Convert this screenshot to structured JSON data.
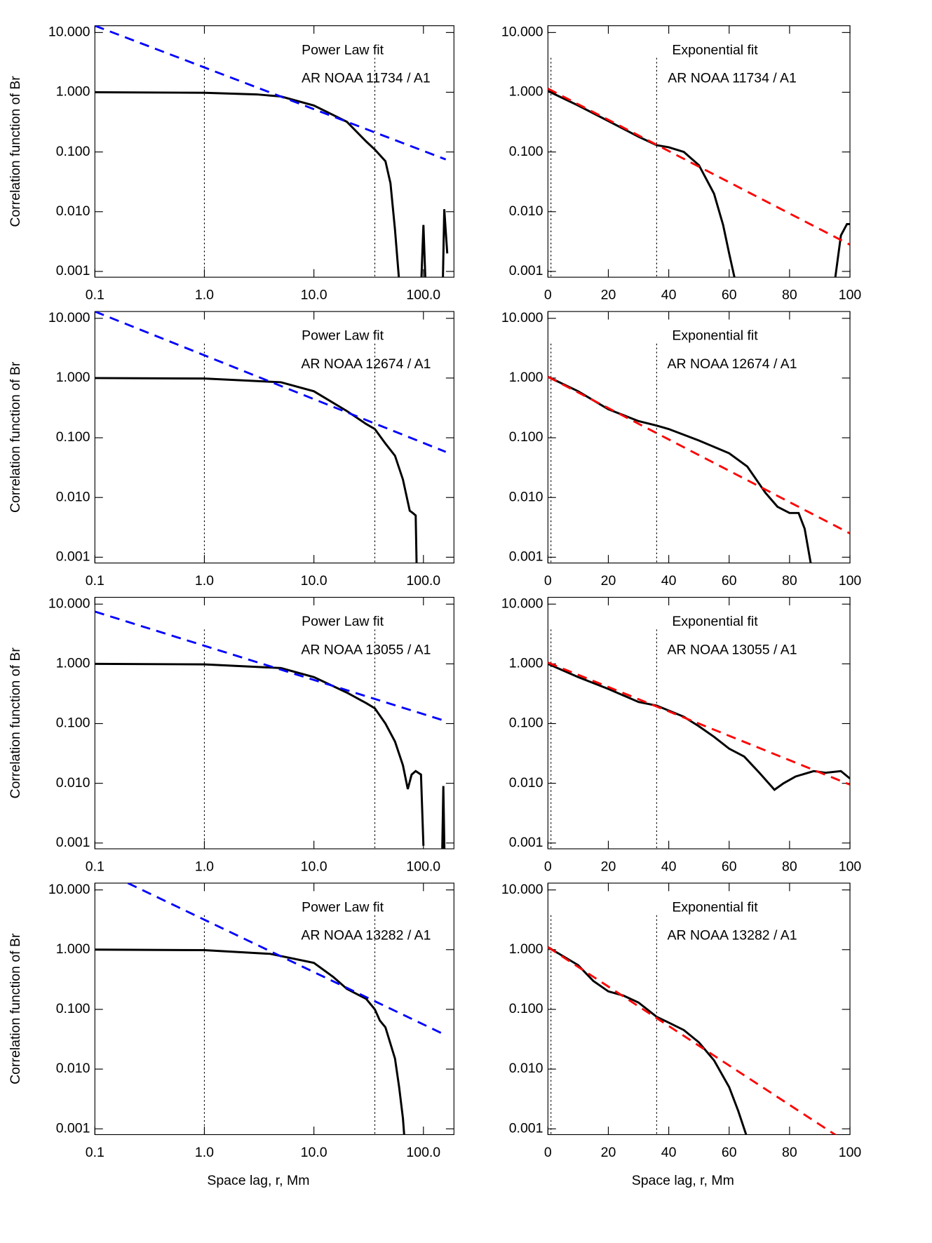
{
  "chart_data": [
    {
      "type": "line",
      "xscale": "log",
      "yscale": "log",
      "xlim": [
        0.1,
        190
      ],
      "ylim": [
        0.0008,
        13
      ],
      "xticks": [
        0.1,
        {
          "value": 1,
          "label": "1.0"
        },
        {
          "value": 10,
          "label": "10.0"
        },
        {
          "value": 100,
          "label": "100.0"
        }
      ],
      "yticks": [
        {
          "value": 10,
          "label": "10.000"
        },
        {
          "value": 1,
          "label": "1.000"
        },
        {
          "value": 0.1,
          "label": "0.100"
        },
        {
          "value": 0.01,
          "label": "0.010"
        },
        {
          "value": 0.001,
          "label": "0.001"
        }
      ],
      "ylabel": "Correlation function of Br",
      "annotations": [
        "Power Law fit",
        "AR NOAA 11734 / A1"
      ],
      "vlines": [
        1,
        36
      ],
      "series": [
        {
          "color": "#000000",
          "x": [
            0.1,
            1,
            3,
            5,
            10,
            20,
            30,
            36,
            45,
            50,
            55,
            60,
            null,
            95,
            100,
            105,
            null,
            150,
            155,
            165
          ],
          "values": [
            1.0,
            0.98,
            0.92,
            0.85,
            0.6,
            0.32,
            0.15,
            0.11,
            0.07,
            0.03,
            0.005,
            0.0007,
            null,
            0.0005,
            0.006,
            0.0005,
            null,
            0.0005,
            0.011,
            0.002
          ]
        },
        {
          "color": "#0000ff",
          "dash": true,
          "x": [
            0.1,
            160
          ],
          "values": [
            13,
            0.075
          ]
        }
      ]
    },
    {
      "type": "line",
      "xscale": "linear",
      "yscale": "log",
      "xlim": [
        0,
        100
      ],
      "ylim": [
        0.0008,
        13
      ],
      "xticks": [
        0,
        20,
        40,
        60,
        80,
        100
      ],
      "yticks": [
        {
          "value": 10,
          "label": "10.000"
        },
        {
          "value": 1,
          "label": "1.000"
        },
        {
          "value": 0.1,
          "label": "0.100"
        },
        {
          "value": 0.01,
          "label": "0.010"
        },
        {
          "value": 0.001,
          "label": "0.001"
        }
      ],
      "annotations": [
        "Exponential fit",
        "AR NOAA 11734 / A1"
      ],
      "vlines": [
        1,
        36
      ],
      "series": [
        {
          "color": "#000000",
          "x": [
            0,
            10,
            20,
            30,
            36,
            40,
            45,
            50,
            55,
            58,
            60,
            62,
            null,
            95,
            97,
            99,
            100
          ],
          "values": [
            1.05,
            0.6,
            0.33,
            0.18,
            0.13,
            0.12,
            0.1,
            0.06,
            0.02,
            0.006,
            0.002,
            0.0007,
            null,
            0.0007,
            0.004,
            0.0062,
            0.0062
          ]
        },
        {
          "color": "#ff0000",
          "dash": true,
          "x": [
            0,
            100
          ],
          "values": [
            1.15,
            0.0028
          ]
        }
      ]
    },
    {
      "type": "line",
      "xscale": "log",
      "yscale": "log",
      "xlim": [
        0.1,
        190
      ],
      "ylim": [
        0.0008,
        13
      ],
      "xticks": [
        0.1,
        {
          "value": 1,
          "label": "1.0"
        },
        {
          "value": 10,
          "label": "10.0"
        },
        {
          "value": 100,
          "label": "100.0"
        }
      ],
      "yticks": [
        {
          "value": 10,
          "label": "10.000"
        },
        {
          "value": 1,
          "label": "1.000"
        },
        {
          "value": 0.1,
          "label": "0.100"
        },
        {
          "value": 0.01,
          "label": "0.010"
        },
        {
          "value": 0.001,
          "label": "0.001"
        }
      ],
      "ylabel": "Correlation function of Br",
      "annotations": [
        "Power Law fit",
        "AR NOAA 12674 / A1"
      ],
      "vlines": [
        1,
        36
      ],
      "series": [
        {
          "color": "#000000",
          "x": [
            0.1,
            1,
            5,
            10,
            20,
            30,
            36,
            45,
            55,
            65,
            75,
            80,
            85,
            87
          ],
          "values": [
            1.0,
            0.98,
            0.85,
            0.6,
            0.28,
            0.17,
            0.14,
            0.08,
            0.05,
            0.02,
            0.006,
            0.0055,
            0.005,
            0.0005
          ]
        },
        {
          "color": "#0000ff",
          "dash": true,
          "x": [
            0.1,
            160
          ],
          "values": [
            13,
            0.058
          ]
        }
      ]
    },
    {
      "type": "line",
      "xscale": "linear",
      "yscale": "log",
      "xlim": [
        0,
        100
      ],
      "ylim": [
        0.0008,
        13
      ],
      "xticks": [
        0,
        20,
        40,
        60,
        80,
        100
      ],
      "yticks": [
        {
          "value": 10,
          "label": "10.000"
        },
        {
          "value": 1,
          "label": "1.000"
        },
        {
          "value": 0.1,
          "label": "0.100"
        },
        {
          "value": 0.01,
          "label": "0.010"
        },
        {
          "value": 0.001,
          "label": "0.001"
        }
      ],
      "annotations": [
        "Exponential fit",
        "AR NOAA 12674 / A1"
      ],
      "vlines": [
        1,
        36
      ],
      "series": [
        {
          "color": "#000000",
          "x": [
            0,
            10,
            20,
            30,
            36,
            40,
            50,
            60,
            66,
            72,
            76,
            80,
            83,
            85,
            87
          ],
          "values": [
            1.05,
            0.6,
            0.3,
            0.19,
            0.16,
            0.14,
            0.09,
            0.055,
            0.033,
            0.012,
            0.007,
            0.0055,
            0.0055,
            0.003,
            0.0008
          ]
        },
        {
          "color": "#ff0000",
          "dash": true,
          "x": [
            0,
            100
          ],
          "values": [
            1.05,
            0.0025
          ]
        }
      ]
    },
    {
      "type": "line",
      "xscale": "log",
      "yscale": "log",
      "xlim": [
        0.1,
        190
      ],
      "ylim": [
        0.0008,
        13
      ],
      "xticks": [
        0.1,
        {
          "value": 1,
          "label": "1.0"
        },
        {
          "value": 10,
          "label": "10.0"
        },
        {
          "value": 100,
          "label": "100.0"
        }
      ],
      "yticks": [
        {
          "value": 10,
          "label": "10.000"
        },
        {
          "value": 1,
          "label": "1.000"
        },
        {
          "value": 0.1,
          "label": "0.100"
        },
        {
          "value": 0.01,
          "label": "0.010"
        },
        {
          "value": 0.001,
          "label": "0.001"
        }
      ],
      "ylabel": "Correlation function of Br",
      "annotations": [
        "Power Law fit",
        "AR NOAA 13055 / A1"
      ],
      "vlines": [
        1,
        36
      ],
      "series": [
        {
          "color": "#000000",
          "x": [
            0.1,
            1,
            5,
            10,
            20,
            30,
            36,
            45,
            55,
            65,
            72,
            78,
            85,
            95,
            100,
            null,
            148,
            152,
            156
          ],
          "values": [
            1.0,
            0.98,
            0.85,
            0.6,
            0.33,
            0.22,
            0.18,
            0.1,
            0.05,
            0.02,
            0.008,
            0.014,
            0.016,
            0.014,
            0.0009,
            null,
            0.0005,
            0.009,
            0.0005
          ]
        },
        {
          "color": "#0000ff",
          "dash": true,
          "x": [
            0.1,
            160
          ],
          "values": [
            7.5,
            0.11
          ]
        }
      ]
    },
    {
      "type": "line",
      "xscale": "linear",
      "yscale": "log",
      "xlim": [
        0,
        100
      ],
      "ylim": [
        0.0008,
        13
      ],
      "xticks": [
        0,
        20,
        40,
        60,
        80,
        100
      ],
      "yticks": [
        {
          "value": 10,
          "label": "10.000"
        },
        {
          "value": 1,
          "label": "1.000"
        },
        {
          "value": 0.1,
          "label": "0.100"
        },
        {
          "value": 0.01,
          "label": "0.010"
        },
        {
          "value": 0.001,
          "label": "0.001"
        }
      ],
      "annotations": [
        "Exponential fit",
        "AR NOAA 13055 / A1"
      ],
      "vlines": [
        1,
        36
      ],
      "series": [
        {
          "color": "#000000",
          "x": [
            0,
            10,
            20,
            30,
            36,
            45,
            50,
            55,
            60,
            65,
            70,
            75,
            78,
            82,
            88,
            92,
            97,
            100
          ],
          "values": [
            1.0,
            0.6,
            0.38,
            0.23,
            0.2,
            0.13,
            0.09,
            0.06,
            0.038,
            0.028,
            0.015,
            0.0078,
            0.01,
            0.013,
            0.016,
            0.015,
            0.016,
            0.012
          ]
        },
        {
          "color": "#ff0000",
          "dash": true,
          "x": [
            0,
            100
          ],
          "values": [
            1.05,
            0.0095
          ]
        }
      ]
    },
    {
      "type": "line",
      "xscale": "log",
      "yscale": "log",
      "xlim": [
        0.1,
        190
      ],
      "ylim": [
        0.0008,
        13
      ],
      "xticks": [
        0.1,
        {
          "value": 1,
          "label": "1.0"
        },
        {
          "value": 10,
          "label": "10.0"
        },
        {
          "value": 100,
          "label": "100.0"
        }
      ],
      "yticks": [
        {
          "value": 10,
          "label": "10.000"
        },
        {
          "value": 1,
          "label": "1.000"
        },
        {
          "value": 0.1,
          "label": "0.100"
        },
        {
          "value": 0.01,
          "label": "0.010"
        },
        {
          "value": 0.001,
          "label": "0.001"
        }
      ],
      "ylabel": "Correlation function of Br",
      "xlabel": "Space lag, r, Mm",
      "annotations": [
        "Power Law fit",
        "AR NOAA 13282 / A1"
      ],
      "vlines": [
        1,
        36
      ],
      "series": [
        {
          "color": "#000000",
          "x": [
            0.1,
            1,
            4,
            10,
            15,
            20,
            30,
            36,
            40,
            45,
            55,
            60,
            65,
            68
          ],
          "values": [
            1.0,
            0.98,
            0.85,
            0.6,
            0.35,
            0.22,
            0.15,
            0.1,
            0.065,
            0.05,
            0.015,
            0.005,
            0.0015,
            0.0005
          ]
        },
        {
          "color": "#0000ff",
          "dash": true,
          "x": [
            0.2,
            160
          ],
          "values": [
            13,
            0.037
          ]
        }
      ]
    },
    {
      "type": "line",
      "xscale": "linear",
      "yscale": "log",
      "xlim": [
        0,
        100
      ],
      "ylim": [
        0.0008,
        13
      ],
      "xticks": [
        0,
        20,
        40,
        60,
        80,
        100
      ],
      "yticks": [
        {
          "value": 10,
          "label": "10.000"
        },
        {
          "value": 1,
          "label": "1.000"
        },
        {
          "value": 0.1,
          "label": "0.100"
        },
        {
          "value": 0.01,
          "label": "0.010"
        },
        {
          "value": 0.001,
          "label": "0.001"
        }
      ],
      "xlabel": "Space lag, r, Mm",
      "annotations": [
        "Exponential fit",
        "AR NOAA 13282 / A1"
      ],
      "vlines": [
        1,
        36
      ],
      "series": [
        {
          "color": "#000000",
          "x": [
            0,
            10,
            15,
            20,
            25,
            30,
            36,
            40,
            45,
            50,
            55,
            60,
            63,
            66
          ],
          "values": [
            1.1,
            0.55,
            0.3,
            0.2,
            0.17,
            0.13,
            0.075,
            0.06,
            0.045,
            0.028,
            0.014,
            0.005,
            0.002,
            0.0007
          ]
        },
        {
          "color": "#ff0000",
          "dash": true,
          "x": [
            0,
            100
          ],
          "values": [
            1.1,
            0.00055
          ]
        }
      ]
    }
  ]
}
